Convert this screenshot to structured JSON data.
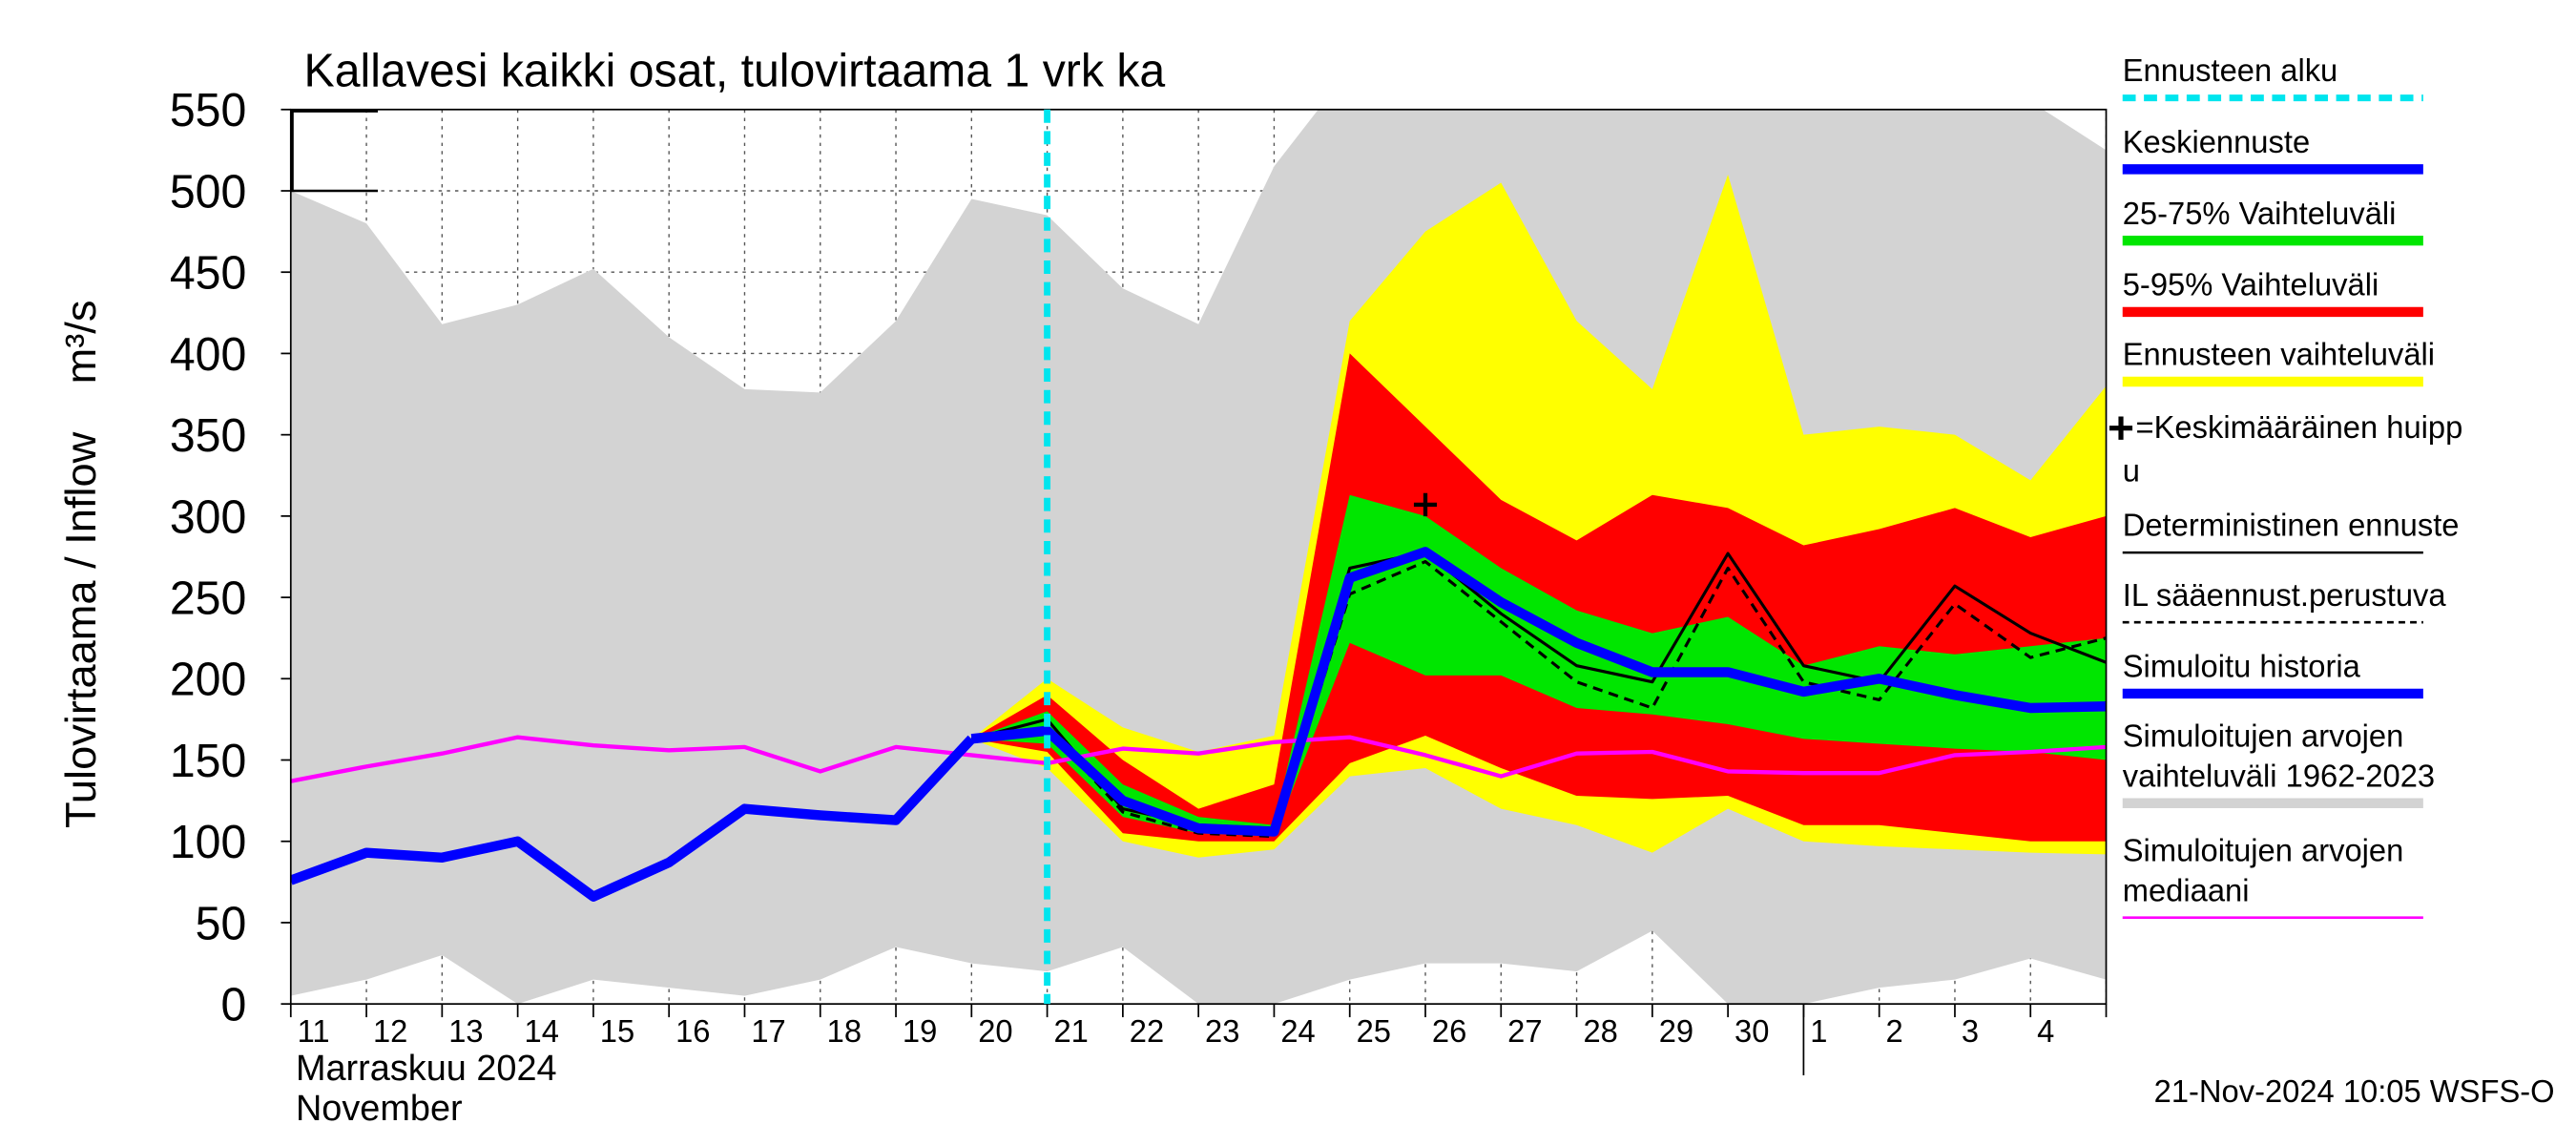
{
  "chart_data": {
    "type": "line",
    "title": "Kallavesi kaikki osat, tulovirtaama 1 vrk ka",
    "ylabel": "Tulovirtaama / Inflow    m³/s",
    "xlabel": [
      "Marraskuu 2024",
      "November"
    ],
    "footer": "21-Nov-2024 10:05 WSFS-O",
    "categories": [
      "11",
      "12",
      "13",
      "14",
      "15",
      "16",
      "17",
      "18",
      "19",
      "20",
      "21",
      "22",
      "23",
      "24",
      "25",
      "26",
      "27",
      "28",
      "29",
      "30",
      "1",
      "2",
      "3",
      "4",
      null
    ],
    "ylim": [
      0,
      550
    ],
    "yticks": [
      0,
      50,
      100,
      150,
      200,
      250,
      300,
      350,
      400,
      450,
      500,
      550
    ],
    "grid": true,
    "forecast_start": {
      "name": "Ennusteen alku",
      "at": "21",
      "color": "#00e5ee"
    },
    "peak": {
      "name": [
        "=Keskimääräinen huipp",
        "u"
      ],
      "at": "26",
      "value": 307
    },
    "series": [
      {
        "name": [
          "Simuloitujen arvojen",
          "vaihteluväli 1962-2023"
        ],
        "type": "band",
        "color": "#d3d3d3",
        "upper": [
          500,
          480,
          418,
          430,
          452,
          410,
          378,
          376,
          420,
          495,
          485,
          440,
          418,
          515,
          575,
          580,
          580,
          570,
          560,
          575,
          580,
          575,
          560,
          555,
          525
        ],
        "lower": [
          5,
          15,
          30,
          0,
          15,
          10,
          5,
          15,
          35,
          25,
          20,
          35,
          0,
          0,
          15,
          25,
          25,
          20,
          45,
          0,
          0,
          10,
          15,
          28,
          15
        ]
      },
      {
        "name": "Ennusteen vaihteluväli",
        "type": "band",
        "color": "#ffff00",
        "upper": [
          null,
          null,
          null,
          null,
          null,
          null,
          null,
          null,
          null,
          163,
          200,
          170,
          155,
          165,
          420,
          475,
          505,
          420,
          378,
          510,
          350,
          355,
          350,
          322,
          380
        ],
        "lower": [
          null,
          null,
          null,
          null,
          null,
          null,
          null,
          null,
          null,
          163,
          145,
          100,
          90,
          95,
          140,
          145,
          120,
          110,
          93,
          120,
          100,
          97,
          95,
          93,
          92
        ]
      },
      {
        "name": "5-95% Vaihteluväli",
        "type": "band",
        "color": "#ff0000",
        "upper": [
          null,
          null,
          null,
          null,
          null,
          null,
          null,
          null,
          null,
          163,
          190,
          150,
          120,
          135,
          400,
          355,
          310,
          285,
          313,
          305,
          282,
          292,
          305,
          287,
          300
        ],
        "lower": [
          null,
          null,
          null,
          null,
          null,
          null,
          null,
          null,
          null,
          163,
          155,
          105,
          100,
          100,
          148,
          165,
          145,
          128,
          126,
          128,
          110,
          110,
          105,
          100,
          100
        ]
      },
      {
        "name": "25-75% Vaihteluväli",
        "type": "band",
        "color": "#00e600",
        "upper": [
          null,
          null,
          null,
          null,
          null,
          null,
          null,
          null,
          null,
          163,
          180,
          135,
          115,
          110,
          313,
          300,
          268,
          242,
          228,
          238,
          208,
          220,
          215,
          220,
          225
        ],
        "lower": [
          null,
          null,
          null,
          null,
          null,
          null,
          null,
          null,
          null,
          163,
          160,
          115,
          105,
          103,
          222,
          202,
          202,
          182,
          178,
          172,
          163,
          160,
          157,
          155,
          150
        ]
      },
      {
        "name": [
          "Simuloitujen arvojen",
          "mediaani"
        ],
        "type": "line",
        "color": "#ff00ff",
        "linewidth": 2.5,
        "values": [
          137,
          146,
          154,
          164,
          159,
          156,
          158,
          143,
          158,
          153,
          148,
          157,
          154,
          161,
          164,
          153,
          140,
          154,
          155,
          143,
          142,
          142,
          153,
          155,
          158
        ]
      },
      {
        "name": "Deterministinen ennuste",
        "type": "line",
        "color": "#000000",
        "linewidth": 1.8,
        "values": [
          null,
          null,
          null,
          null,
          null,
          null,
          null,
          null,
          null,
          163,
          175,
          120,
          110,
          108,
          268,
          278,
          240,
          208,
          198,
          277,
          208,
          198,
          257,
          228,
          210
        ]
      },
      {
        "name": "IL sääennust.perustuva",
        "type": "line",
        "color": "#000000",
        "linewidth": 1.8,
        "linestyle": "dashed",
        "values": [
          null,
          null,
          null,
          null,
          null,
          null,
          null,
          null,
          null,
          163,
          170,
          118,
          105,
          103,
          252,
          272,
          235,
          198,
          182,
          268,
          198,
          187,
          246,
          213,
          225
        ]
      },
      {
        "name": "Simuloitu historia",
        "type": "line",
        "color": "#0000ff",
        "linewidth": 6,
        "values": [
          76,
          93,
          90,
          100,
          66,
          87,
          120,
          116,
          113,
          163,
          null,
          null,
          null,
          null,
          null,
          null,
          null,
          null,
          null,
          null,
          null,
          null,
          null,
          null,
          null
        ]
      },
      {
        "name": "Keskiennuste",
        "type": "line",
        "color": "#0000ff",
        "linewidth": 6,
        "values": [
          null,
          null,
          null,
          null,
          null,
          null,
          null,
          null,
          null,
          163,
          168,
          125,
          108,
          106,
          262,
          278,
          247,
          222,
          204,
          204,
          192,
          200,
          190,
          182,
          183
        ]
      }
    ]
  }
}
